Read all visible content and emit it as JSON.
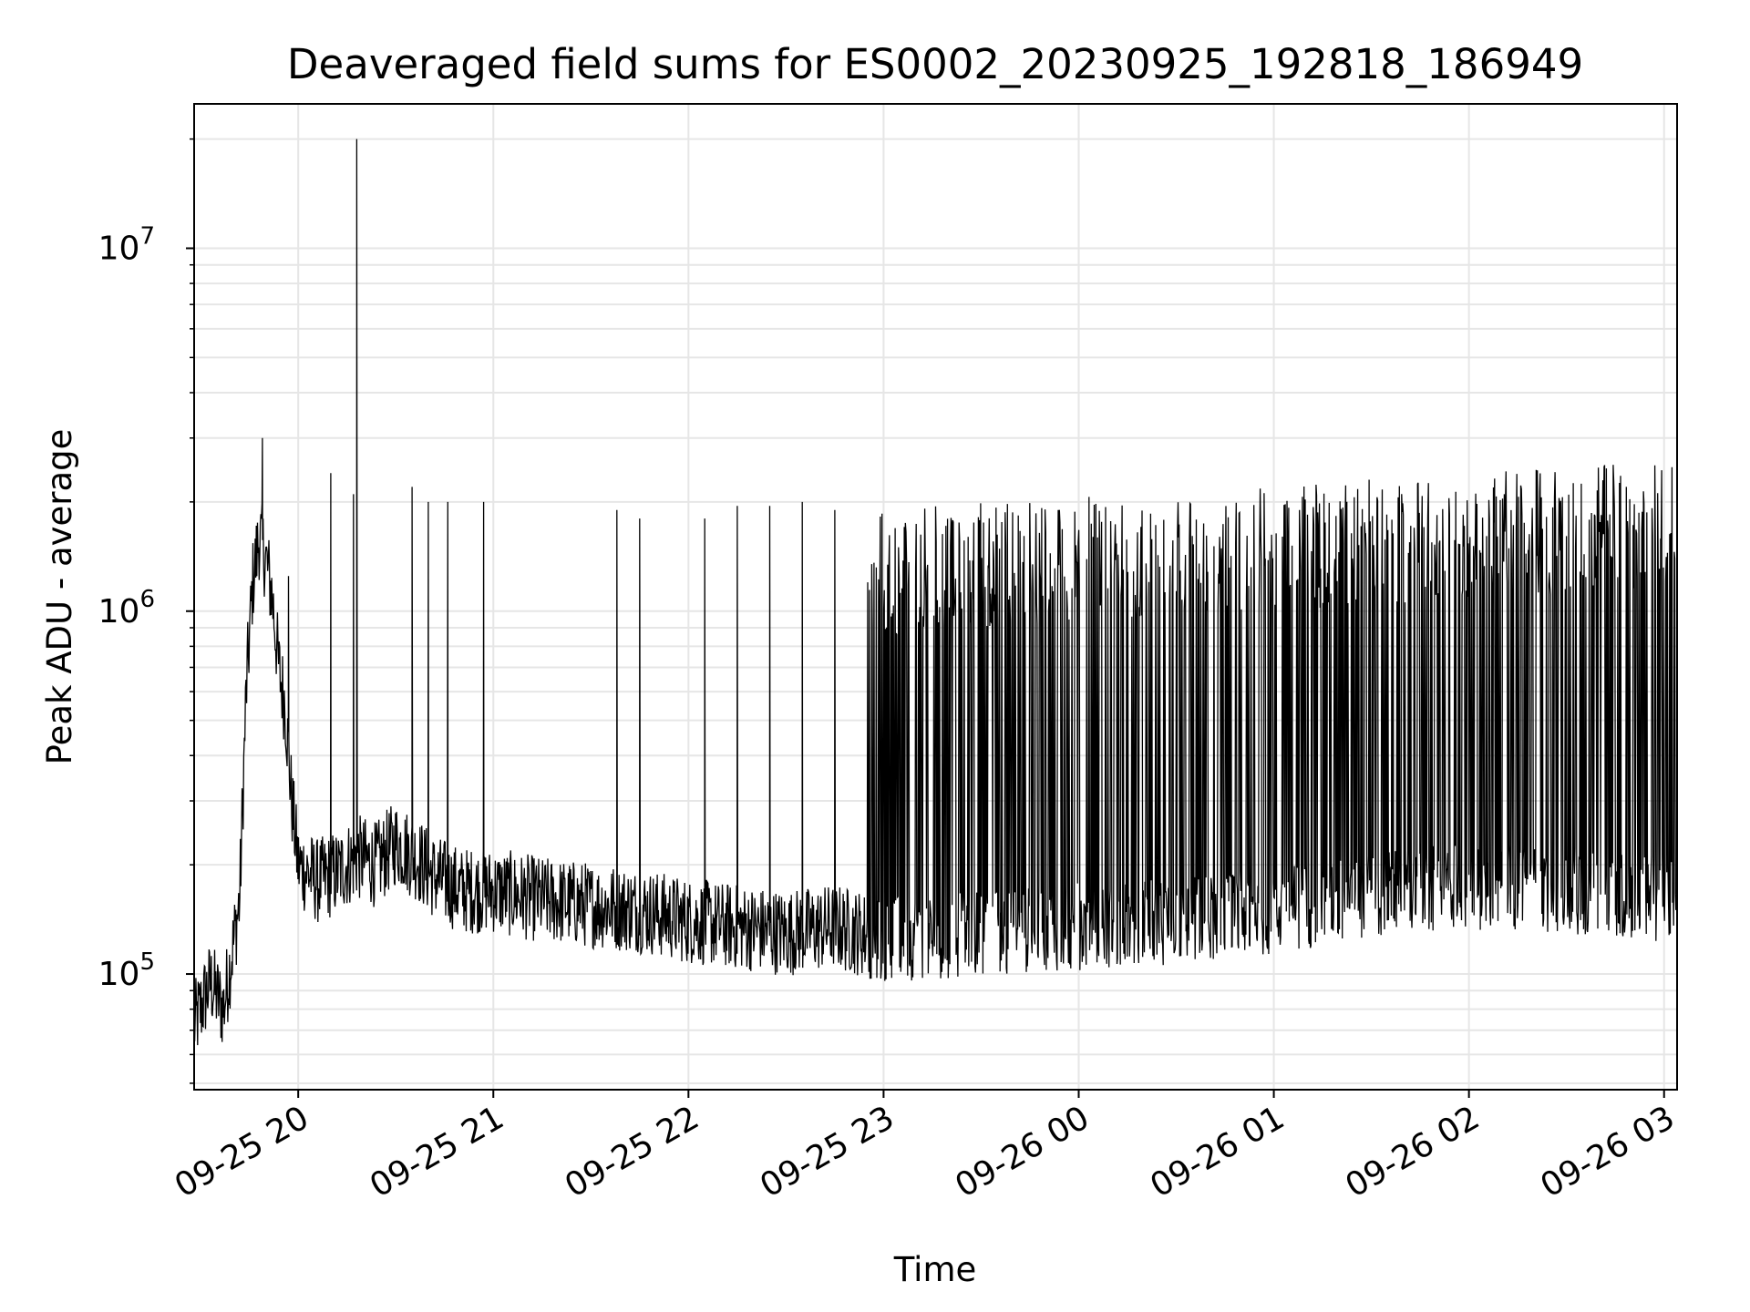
{
  "chart_data": {
    "type": "line",
    "title": "Deaveraged field sums for ES0002_20230925_192818_186949",
    "xlabel": "Time",
    "ylabel": "Peak ADU - average",
    "yscale": "log",
    "xlim": [
      "2023-09-25 19:28",
      "2023-09-26 03:04"
    ],
    "ylim": [
      48000,
      25000000
    ],
    "grid": true,
    "line_color": "#000000",
    "x_ticks": [
      "09-25 20",
      "09-25 21",
      "09-25 22",
      "09-25 23",
      "09-26 00",
      "09-26 01",
      "09-26 02",
      "09-26 03"
    ],
    "y_ticks": [
      {
        "base": "10",
        "exp": "5"
      },
      {
        "base": "10",
        "exp": "6"
      },
      {
        "base": "10",
        "exp": "7"
      }
    ],
    "series": [
      {
        "x": [
          "2023-09-25 19:28",
          "2023-09-25 19:33",
          "2023-09-25 19:37",
          "2023-09-25 19:40",
          "2023-09-25 19:42",
          "2023-09-25 19:44",
          "2023-09-25 19:46",
          "2023-09-25 19:48",
          "2023-09-25 19:50",
          "2023-09-25 19:52",
          "2023-09-25 19:54",
          "2023-09-25 19:56",
          "2023-09-25 19:58",
          "2023-09-25 20:00",
          "2023-09-25 20:06",
          "2023-09-25 20:12",
          "2023-09-25 20:18",
          "2023-09-25 20:24",
          "2023-09-25 20:30",
          "2023-09-25 20:36",
          "2023-09-25 20:42",
          "2023-09-25 20:50",
          "2023-09-25 21:00",
          "2023-09-25 21:15",
          "2023-09-25 21:30",
          "2023-09-25 21:45",
          "2023-09-25 22:00",
          "2023-09-25 22:15",
          "2023-09-25 22:30",
          "2023-09-25 22:45",
          "2023-09-25 23:00",
          "2023-09-25 23:30",
          "2023-09-26 00:00",
          "2023-09-26 00:30",
          "2023-09-26 01:00",
          "2023-09-26 01:30",
          "2023-09-26 02:00",
          "2023-09-26 02:30",
          "2023-09-26 02:45",
          "2023-09-26 03:04"
        ],
        "values": [
          72000,
          95000,
          80000,
          120000,
          160000,
          600000,
          1200000,
          1600000,
          1400000,
          1100000,
          700000,
          550000,
          300000,
          200000,
          180000,
          190000,
          210000,
          200000,
          230000,
          210000,
          185000,
          170000,
          170000,
          160000,
          155000,
          150000,
          140000,
          135000,
          130000,
          135000,
          125000,
          130000,
          135000,
          140000,
          150000,
          165000,
          175000,
          170000,
          165000,
          160000
        ]
      }
    ],
    "spikes": [
      {
        "x": "2023-09-25 19:49",
        "y": 3000000
      },
      {
        "x": "2023-09-25 19:57",
        "y": 1250000
      },
      {
        "x": "2023-09-25 20:10",
        "y": 2400000
      },
      {
        "x": "2023-09-25 20:17",
        "y": 2100000
      },
      {
        "x": "2023-09-25 20:18",
        "y": 20000000
      },
      {
        "x": "2023-09-25 20:35",
        "y": 2200000
      },
      {
        "x": "2023-09-25 20:40",
        "y": 2000000
      },
      {
        "x": "2023-09-25 20:46",
        "y": 2000000
      },
      {
        "x": "2023-09-25 20:57",
        "y": 2000000
      },
      {
        "x": "2023-09-25 21:38",
        "y": 1900000
      },
      {
        "x": "2023-09-25 21:45",
        "y": 1800000
      },
      {
        "x": "2023-09-25 22:05",
        "y": 1800000
      },
      {
        "x": "2023-09-25 22:15",
        "y": 1950000
      },
      {
        "x": "2023-09-25 22:25",
        "y": 1950000
      },
      {
        "x": "2023-09-25 22:35",
        "y": 2000000
      },
      {
        "x": "2023-09-25 22:45",
        "y": 1900000
      }
    ],
    "dense_band": {
      "x_start": "2023-09-25 22:55",
      "x_end": "2023-09-26 03:04",
      "top_start": 1900000,
      "top_end": 2600000,
      "bottom_start": 110000,
      "bottom_end": 140000
    }
  }
}
